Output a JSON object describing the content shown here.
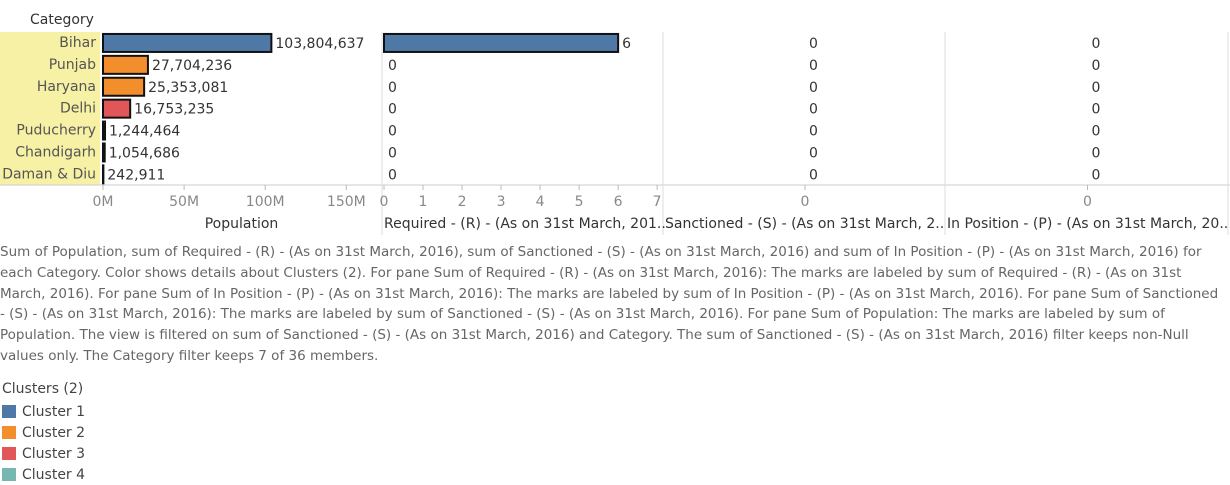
{
  "category_header": "Category",
  "chart_data": [
    {
      "type": "bar",
      "x_label": "Population",
      "categories": [
        "Bihar",
        "Punjab",
        "Haryana",
        "Delhi",
        "Puducherry",
        "Chandigarh",
        "Daman & Diu"
      ],
      "values": [
        103804637,
        27704236,
        25353081,
        16753235,
        1244464,
        1054686,
        242911
      ],
      "value_labels": [
        "103,804,637",
        "27,704,236",
        "25,353,081",
        "16,753,235",
        "1,244,464",
        "1,054,686",
        "242,911"
      ],
      "colors": [
        "#4e79a7",
        "#f28e2b",
        "#f28e2b",
        "#e15759",
        "#76b7b2",
        "#76b7b2",
        "#76b7b2"
      ],
      "xlim": [
        0,
        172000000
      ],
      "xticks": [
        {
          "value": 0,
          "label": "0M"
        },
        {
          "value": 50000000,
          "label": "50M"
        },
        {
          "value": 100000000,
          "label": "100M"
        },
        {
          "value": 150000000,
          "label": "150M"
        }
      ]
    },
    {
      "type": "bar",
      "x_label": "Required - (R) - (As on 31st March, 201..",
      "values": [
        6,
        0,
        0,
        0,
        0,
        0,
        0
      ],
      "xlim": [
        0,
        7.15
      ],
      "xticks": [
        0,
        1,
        2,
        3,
        4,
        5,
        6,
        7
      ]
    },
    {
      "type": "bar",
      "x_label": "Sanctioned - (S) - (As on 31st March, 2..",
      "values": [
        0,
        0,
        0,
        0,
        0,
        0,
        0
      ],
      "xlim": [
        -1,
        1
      ],
      "xticks": [
        0
      ]
    },
    {
      "type": "bar",
      "x_label": "In Position - (P) - (As on 31st March, 20..",
      "values": [
        0,
        0,
        0,
        0,
        0,
        0,
        0
      ],
      "xlim": [
        -1,
        1
      ],
      "xticks": [
        0
      ]
    }
  ],
  "caption": "Sum of Population, sum of Required - (R) - (As on 31st March, 2016), sum of Sanctioned - (S) - (As on 31st March, 2016) and sum of In Position - (P) - (As on 31st March, 2016) for each Category.  Color shows details about Clusters (2).  For pane Sum of Required - (R) - (As on 31st March, 2016):  The marks are labeled by sum of Required - (R) - (As on 31st March, 2016).  For pane Sum of In Position - (P) - (As on 31st March, 2016):  The marks are labeled by sum of In Position - (P) - (As on 31st March, 2016).  For pane Sum of Sanctioned - (S) - (As on 31st March, 2016):  The marks are labeled by sum of Sanctioned - (S) - (As on 31st March, 2016).  For pane Sum of Population:  The marks are labeled by sum of Population. The view is filtered on sum of Sanctioned - (S) - (As on 31st March, 2016) and Category. The sum of Sanctioned - (S) - (As on 31st March, 2016) filter keeps non-Null values only. The Category filter keeps 7 of 36 members.",
  "legend": {
    "title": "Clusters (2)",
    "items": [
      {
        "name": "Cluster 1",
        "color": "#4e79a7"
      },
      {
        "name": "Cluster 2",
        "color": "#f28e2b"
      },
      {
        "name": "Cluster 3",
        "color": "#e15759"
      },
      {
        "name": "Cluster 4",
        "color": "#76b7b2"
      }
    ]
  }
}
